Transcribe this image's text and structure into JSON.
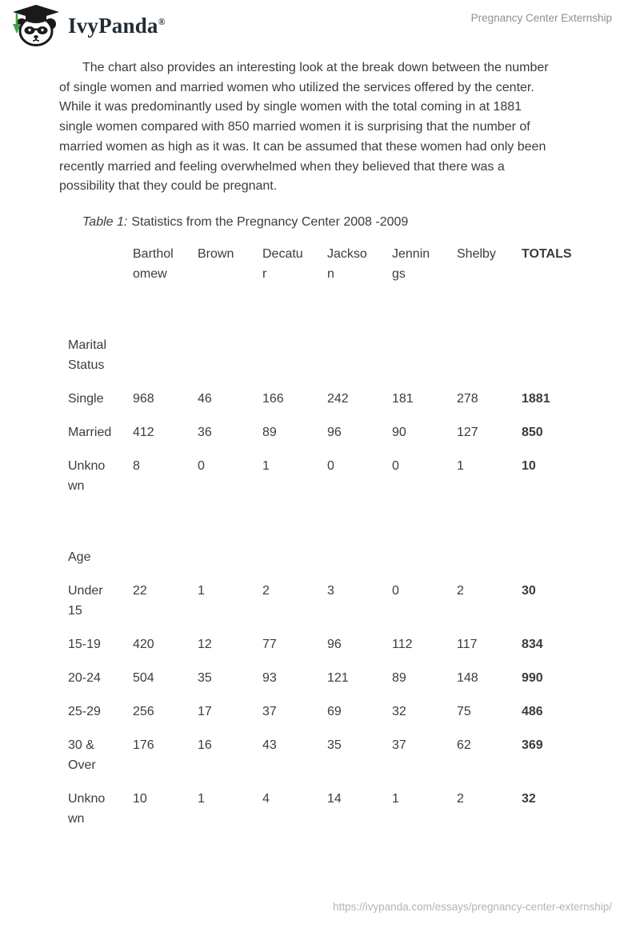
{
  "header": {
    "brand": "IvyPanda",
    "brand_mark": "®",
    "doc_title": "Pregnancy Center Externship"
  },
  "colors": {
    "text": "#3c3c3c",
    "running_head": "#8f8f8f",
    "footer_url": "#b4b4b4",
    "brand_text": "#232c33",
    "logo_green": "#3fa34c",
    "logo_black": "#1a1a1a"
  },
  "icons": {
    "logo": "panda-graduation-cap-icon"
  },
  "paragraph": "The chart also provides an interesting look at the break down between the number of single women and married women who utilized the services offered by the center. While it was predominantly used by single women with the total coming in at 1881 single women compared with 850 married women it is surprising that the number of married women as high as it was. It can be assumed that these women had only been recently married and feeling overwhelmed when they believed that there was a possibility that they could be pregnant.",
  "caption": {
    "label": "Table 1:",
    "text": "Statistics from the Pregnancy Center 2008 -2009"
  },
  "table": {
    "columns": [
      "Bartholomew",
      "Brown",
      "Decatur",
      "Jackson",
      "Jennings",
      "Shelby",
      "TOTALS"
    ],
    "rows": [
      {
        "type": "spacer"
      },
      {
        "type": "section",
        "label": "Marital Status"
      },
      {
        "type": "data",
        "label": "Single",
        "values": [
          968,
          46,
          166,
          242,
          181,
          278
        ],
        "total": 1881
      },
      {
        "type": "data",
        "label": "Married",
        "values": [
          412,
          36,
          89,
          96,
          90,
          127
        ],
        "total": 850
      },
      {
        "type": "data",
        "label": "Unknown",
        "values": [
          8,
          0,
          1,
          0,
          0,
          1
        ],
        "total": 10
      },
      {
        "type": "spacer"
      },
      {
        "type": "section",
        "label": "Age"
      },
      {
        "type": "data",
        "label": "Under 15",
        "values": [
          22,
          1,
          2,
          3,
          0,
          2
        ],
        "total": 30
      },
      {
        "type": "data",
        "label": "15-19",
        "values": [
          420,
          12,
          77,
          96,
          112,
          117
        ],
        "total": 834
      },
      {
        "type": "data",
        "label": "20-24",
        "values": [
          504,
          35,
          93,
          121,
          89,
          148
        ],
        "total": 990
      },
      {
        "type": "data",
        "label": "25-29",
        "values": [
          256,
          17,
          37,
          69,
          32,
          75
        ],
        "total": 486
      },
      {
        "type": "data",
        "label": "30 & Over",
        "values": [
          176,
          16,
          43,
          35,
          37,
          62
        ],
        "total": 369
      },
      {
        "type": "data",
        "label": "Unknown",
        "values": [
          10,
          1,
          4,
          14,
          1,
          2
        ],
        "total": 32
      }
    ]
  },
  "footer": {
    "url": "https://ivypanda.com/essays/pregnancy-center-externship/"
  }
}
